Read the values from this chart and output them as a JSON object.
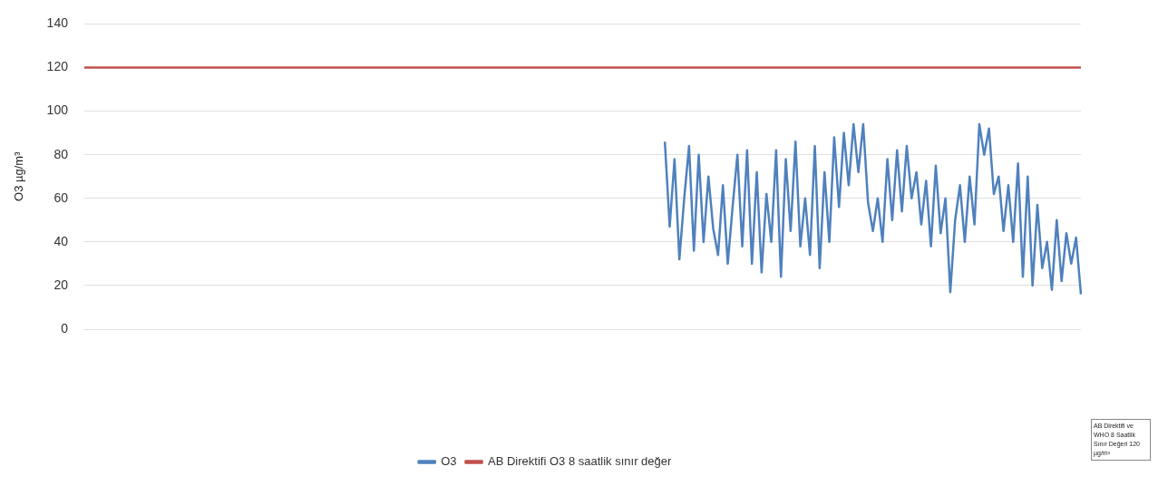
{
  "chart_data": {
    "type": "line",
    "ylabel": "O3 µg/m³",
    "categories": [
      null,
      null,
      null,
      null,
      null,
      null,
      null,
      null,
      null,
      null,
      null,
      null,
      null,
      null,
      null,
      null,
      null,
      null,
      null,
      null,
      null,
      null,
      null,
      null,
      null,
      null,
      null,
      null,
      null,
      null,
      null,
      null,
      null,
      null,
      null,
      null,
      null,
      null,
      null,
      null,
      null,
      null,
      null,
      null,
      null,
      null,
      null,
      null,
      null,
      null,
      null,
      null,
      null,
      null,
      null,
      null,
      null,
      null,
      null,
      null,
      null,
      null,
      null,
      null,
      null,
      null,
      null,
      null,
      null,
      null,
      null,
      null,
      null,
      null,
      null,
      null,
      null,
      null,
      null,
      null,
      null,
      null,
      null,
      null,
      null,
      null,
      null,
      null,
      null,
      null,
      null,
      null,
      null,
      null,
      null,
      null,
      null,
      null,
      null,
      null,
      null,
      null,
      null,
      null,
      null,
      null,
      null,
      null,
      null,
      null,
      null,
      null,
      null,
      null,
      null,
      null,
      null,
      null,
      null,
      null,
      null,
      null,
      null,
      null,
      null,
      null,
      null,
      null,
      null,
      null,
      null,
      null,
      null,
      null,
      null,
      null,
      null,
      null,
      null,
      null,
      null,
      null,
      null,
      null,
      null,
      null,
      null,
      null,
      null,
      null,
      null,
      null,
      null,
      null,
      null,
      null,
      null,
      null,
      null,
      null,
      null,
      null,
      null,
      null,
      null,
      null,
      null,
      null,
      null,
      null,
      null,
      null,
      null,
      null,
      null,
      null,
      null,
      null,
      null,
      null,
      null,
      null,
      null,
      null,
      null,
      null,
      null,
      null,
      null,
      null,
      null,
      null,
      null,
      null,
      null,
      null,
      null,
      null,
      null,
      null,
      null,
      null,
      null,
      null,
      null,
      null,
      null
    ],
    "series": [
      {
        "name": "O3",
        "color": "#4f81bd",
        "values": [
          null,
          null,
          null,
          null,
          null,
          null,
          null,
          null,
          null,
          null,
          null,
          null,
          null,
          null,
          null,
          null,
          null,
          null,
          null,
          null,
          null,
          null,
          null,
          null,
          null,
          null,
          null,
          null,
          null,
          null,
          null,
          null,
          null,
          null,
          null,
          null,
          null,
          null,
          null,
          null,
          null,
          null,
          null,
          null,
          null,
          null,
          null,
          null,
          null,
          null,
          null,
          null,
          null,
          null,
          null,
          null,
          null,
          null,
          null,
          null,
          null,
          null,
          null,
          null,
          null,
          null,
          null,
          null,
          null,
          null,
          null,
          null,
          null,
          null,
          null,
          null,
          null,
          null,
          null,
          null,
          null,
          null,
          null,
          null,
          null,
          null,
          null,
          null,
          null,
          null,
          null,
          null,
          null,
          null,
          null,
          null,
          null,
          null,
          null,
          null,
          null,
          null,
          null,
          null,
          null,
          null,
          null,
          null,
          null,
          null,
          null,
          null,
          null,
          null,
          null,
          null,
          null,
          null,
          null,
          null,
          86,
          47,
          78,
          32,
          60,
          84,
          36,
          80,
          40,
          70,
          46,
          34,
          66,
          30,
          56,
          80,
          38,
          82,
          30,
          72,
          26,
          62,
          40,
          82,
          24,
          78,
          45,
          86,
          38,
          60,
          34,
          84,
          28,
          72,
          40,
          88,
          56,
          90,
          66,
          94,
          72,
          94,
          58,
          45,
          60,
          40,
          78,
          50,
          82,
          54,
          84,
          60,
          72,
          48,
          68,
          38,
          75,
          44,
          60,
          17,
          50,
          66,
          40,
          70,
          48,
          94,
          80,
          92,
          62,
          70,
          45,
          66,
          40,
          76,
          24,
          70,
          20,
          57,
          28,
          40,
          18,
          50,
          22,
          44,
          30,
          42,
          16
        ]
      },
      {
        "name": "AB Direktifi O3 8 saatlik sınır değer",
        "color": "#c0504d",
        "values": [
          120,
          120,
          120,
          120,
          120,
          120,
          120,
          120,
          120,
          120,
          120,
          120,
          120,
          120,
          120,
          120,
          120,
          120,
          120,
          120,
          120,
          120,
          120,
          120,
          120,
          120,
          120,
          120,
          120,
          120,
          120,
          120,
          120,
          120,
          120,
          120,
          120,
          120,
          120,
          120,
          120,
          120,
          120,
          120,
          120,
          120,
          120,
          120,
          120,
          120,
          120,
          120,
          120,
          120,
          120,
          120,
          120,
          120,
          120,
          120,
          120,
          120,
          120,
          120,
          120,
          120,
          120,
          120,
          120,
          120,
          120,
          120,
          120,
          120,
          120,
          120,
          120,
          120,
          120,
          120,
          120,
          120,
          120,
          120,
          120,
          120,
          120,
          120,
          120,
          120,
          120,
          120,
          120,
          120,
          120,
          120,
          120,
          120,
          120,
          120,
          120,
          120,
          120,
          120,
          120,
          120,
          120,
          120,
          120,
          120,
          120,
          120,
          120,
          120,
          120,
          120,
          120,
          120,
          120,
          120,
          120,
          120,
          120,
          120,
          120,
          120,
          120,
          120,
          120,
          120,
          120,
          120,
          120,
          120,
          120,
          120,
          120,
          120,
          120,
          120,
          120,
          120,
          120,
          120,
          120,
          120,
          120,
          120,
          120,
          120,
          120,
          120,
          120,
          120,
          120,
          120,
          120,
          120,
          120,
          120,
          120,
          120,
          120,
          120,
          120,
          120,
          120,
          120,
          120,
          120,
          120,
          120,
          120,
          120,
          120,
          120,
          120,
          120,
          120,
          120,
          120,
          120,
          120,
          120,
          120,
          120,
          120,
          120,
          120,
          120,
          120,
          120,
          120,
          120,
          120,
          120,
          120,
          120,
          120,
          120,
          120,
          120,
          120,
          120,
          120,
          120,
          120
        ]
      }
    ],
    "annotations": [
      "AB Direktifi ve WHO 8 Saatlik Sınır Değeri 120 µg/m³"
    ],
    "ylim": [
      0,
      140
    ],
    "yticks": [
      0,
      20,
      40,
      60,
      80,
      100,
      120,
      140
    ],
    "grid": "y",
    "legend": "bottom",
    "tick_labels": "y",
    "marker": "none",
    "line_style": "solid"
  }
}
